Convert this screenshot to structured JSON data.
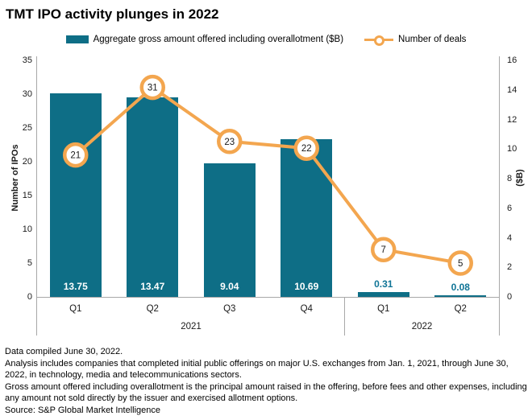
{
  "title": "TMT IPO activity plunges in 2022",
  "legend": {
    "bars_label": "Aggregate gross amount offered including overallotment ($B)",
    "line_label": "Number of deals"
  },
  "chart_data": {
    "type": "bar+line dual-axis combo",
    "categories": [
      "Q1",
      "Q2",
      "Q3",
      "Q4",
      "Q1",
      "Q2"
    ],
    "year_groups": [
      {
        "label": "2021",
        "start": 0,
        "span": 4
      },
      {
        "label": "2022",
        "start": 4,
        "span": 2
      }
    ],
    "series": [
      {
        "name": "Aggregate gross amount offered including overallotment ($B)",
        "type": "bar",
        "axis": "right",
        "values": [
          13.75,
          13.47,
          9.04,
          10.69,
          0.31,
          0.08
        ],
        "labels": [
          "13.75",
          "13.47",
          "9.04",
          "10.69",
          "0.31",
          "0.08"
        ]
      },
      {
        "name": "Number of deals",
        "type": "line",
        "axis": "left",
        "values": [
          21,
          31,
          23,
          22,
          7,
          5
        ],
        "labels": [
          "21",
          "31",
          "23",
          "22",
          "7",
          "5"
        ]
      }
    ],
    "left_axis": {
      "label": "Number of IPOs",
      "min": 0,
      "max": 35,
      "ticks": [
        35,
        30,
        25,
        20,
        15,
        10,
        5,
        0
      ]
    },
    "right_axis": {
      "label": "($B)",
      "min": 0,
      "max": 16,
      "ticks": [
        16,
        14,
        12,
        10,
        8,
        6,
        4,
        2,
        0
      ]
    },
    "grid": false,
    "legend_position": "top-center"
  },
  "colors": {
    "bar": "#0e6e86",
    "line": "#f3a64f",
    "axis": "#a8a8a8",
    "bar_label_inside": "#ffffff",
    "bar_label_outside": "#0f7496",
    "marker_fill": "#ffffff",
    "point_text": "#1a1a1a"
  },
  "footer": {
    "notes": [
      "Data compiled June 30, 2022.",
      "Analysis includes companies that completed initial public offerings on major U.S. exchanges from Jan. 1, 2021, through June 30, 2022,  in technology, media and telecommunications sectors.",
      "Gross amount offered including overallotment is the principal amount raised in the offering, before fees and other expenses, including any amount not sold directly by the issuer and exercised allotment options.",
      "Source: S&P Global Market Intelligence"
    ]
  }
}
